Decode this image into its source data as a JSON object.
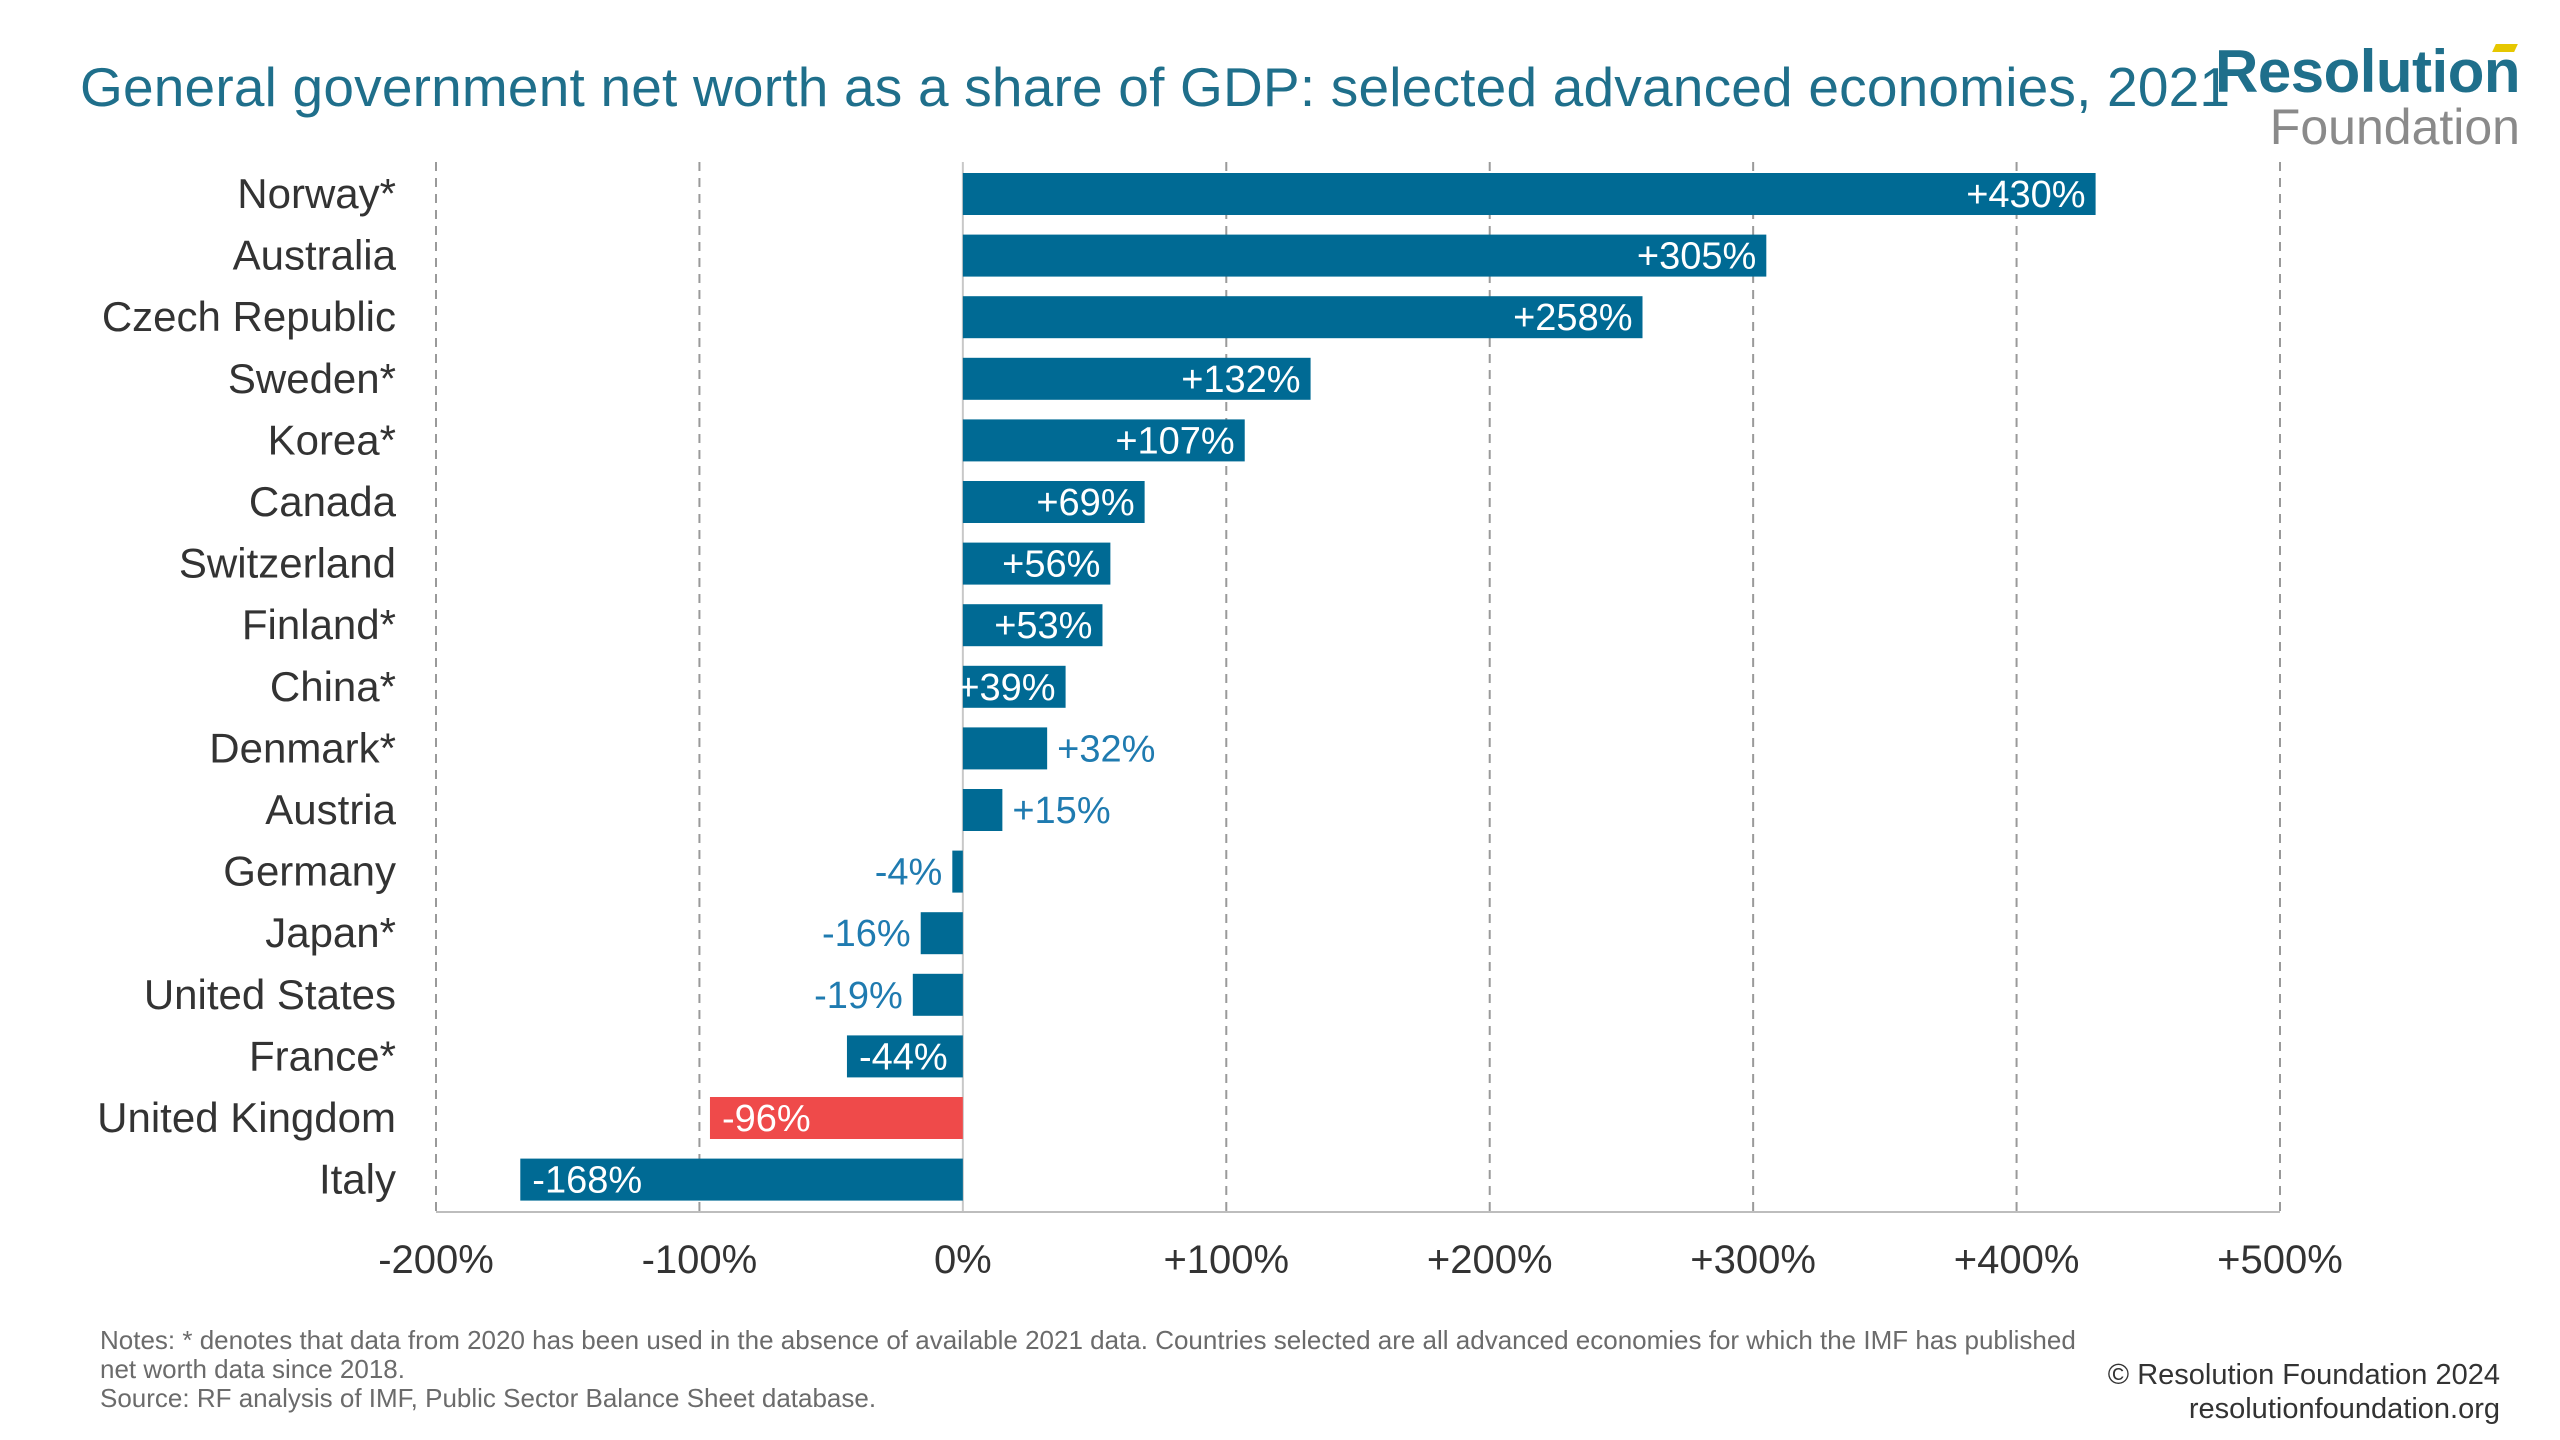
{
  "header": {
    "title": "General government net worth as a share of GDP: selected advanced economies, 2021"
  },
  "logo": {
    "line1": "Resolution",
    "line2": "Foundation"
  },
  "footer": {
    "notes_line1": "Notes: * denotes that data from 2020 has been used in the absence of available 2021 data. Countries selected are all advanced economies for which the IMF has published",
    "notes_line2": "net worth data since 2018.",
    "source": "Source: RF analysis of IMF, Public Sector Balance Sheet database.",
    "copyright": "© Resolution Foundation 2024",
    "website": "resolutionfoundation.org"
  },
  "colors": {
    "bar": "#006a94",
    "highlight": "#ef4a4a",
    "axis_text": "#333333",
    "label_outside": "#1f7bb0",
    "grid": "#9a9a9a"
  },
  "chart_data": {
    "type": "bar",
    "orientation": "horizontal",
    "title": "General government net worth as a share of GDP: selected advanced economies, 2021",
    "categories": [
      "Norway*",
      "Australia",
      "Czech Republic",
      "Sweden*",
      "Korea*",
      "Canada",
      "Switzerland",
      "Finland*",
      "China*",
      "Denmark*",
      "Austria",
      "Germany",
      "Japan*",
      "United States",
      "France*",
      "United Kingdom",
      "Italy"
    ],
    "values": [
      430,
      305,
      258,
      132,
      107,
      69,
      56,
      53,
      39,
      32,
      15,
      -4,
      -16,
      -19,
      -44,
      -96,
      -168
    ],
    "data_labels": [
      "+430%",
      "+305%",
      "+258%",
      "+132%",
      "+107%",
      "+69%",
      "+56%",
      "+53%",
      "+39%",
      "+32%",
      "+15%",
      "-4%",
      "-16%",
      "-19%",
      "-44%",
      "-96%",
      "-168%"
    ],
    "highlight": "United Kingdom",
    "xlim": [
      -200,
      500
    ],
    "x_ticks": [
      -200,
      -100,
      0,
      100,
      200,
      300,
      400,
      500
    ],
    "x_tick_labels": [
      "-200%",
      "-100%",
      "0%",
      "+100%",
      "+200%",
      "+300%",
      "+400%",
      "+500%"
    ],
    "grid": "vertical dashed",
    "xlabel": "",
    "ylabel": ""
  }
}
